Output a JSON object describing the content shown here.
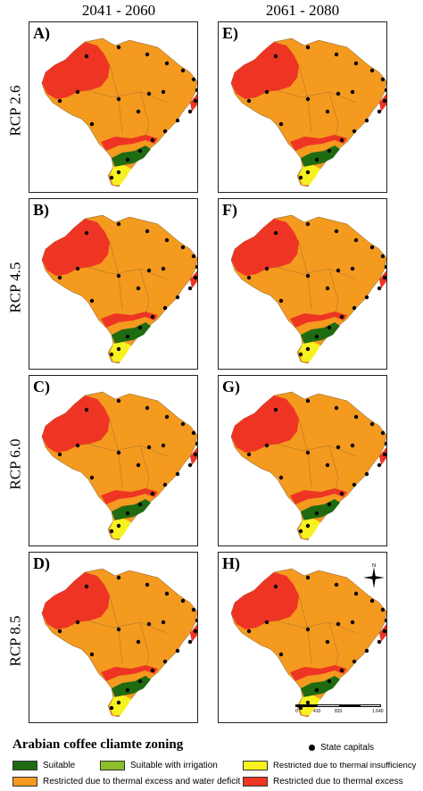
{
  "headers": {
    "left": "2041 - 2060",
    "right": "2061 - 2080"
  },
  "rows": [
    {
      "rcp": "RCP 2.6",
      "left_letter": "A)",
      "right_letter": "E)"
    },
    {
      "rcp": "RCP 4.5",
      "left_letter": "B)",
      "right_letter": "F)"
    },
    {
      "rcp": "RCP 6.0",
      "left_letter": "C)",
      "right_letter": "G)"
    },
    {
      "rcp": "RCP 8.5",
      "left_letter": "D)",
      "right_letter": "H)"
    }
  ],
  "compass": {
    "north": "N"
  },
  "scalebar": {
    "labels": [
      "0",
      "410",
      "820",
      "1.640"
    ]
  },
  "legend": {
    "title": "Arabian coffee cliamte zoning",
    "state_capitals": "State capitals",
    "items": [
      {
        "label": "Suitable",
        "color": "#1f6b12"
      },
      {
        "label": "Suitable with irrigation",
        "color": "#8cbe2a"
      },
      {
        "label": "Restricted due to thermal insufficiency",
        "color": "#f7f21f"
      },
      {
        "label": "Restricted due to thermal excess and water deficit",
        "color": "#f49a1e"
      },
      {
        "label": "Restricted due to thermal excess",
        "color": "#ee3524"
      }
    ]
  },
  "colors": {
    "suitable": "#1f6b12",
    "irrigation": "#8cbe2a",
    "insufficiency": "#f7f21f",
    "excess_deficit": "#f49a1e",
    "excess": "#ee3524"
  }
}
